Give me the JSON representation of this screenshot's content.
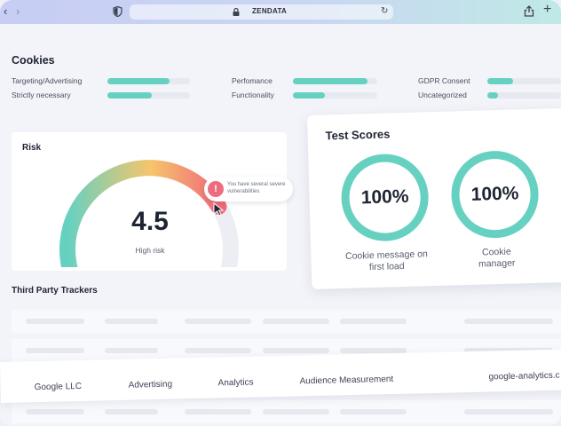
{
  "browser": {
    "url": "ZENDATA",
    "back_icon": "chevron-left-icon",
    "forward_icon": "chevron-right-icon"
  },
  "cookies": {
    "title": "Cookies",
    "categories": [
      {
        "label": "Targeting/Advertising",
        "fill": 0.75
      },
      {
        "label": "Strictly necessary",
        "fill": 0.54
      },
      {
        "label": "Perfomance",
        "fill": 0.88
      },
      {
        "label": "Functionality",
        "fill": 0.38
      },
      {
        "label": "GDPR Consent",
        "fill": 0.35
      },
      {
        "label": "Uncategorized",
        "fill": 0.15
      }
    ]
  },
  "risk": {
    "title": "Risk",
    "score": "4.5",
    "level": "High risk",
    "gauge_fraction": 0.78,
    "alert": "You have several severe vulnerabilities"
  },
  "test_scores": {
    "title": "Test Scores",
    "items": [
      {
        "value": "100%",
        "label": "Cookie message on first load"
      },
      {
        "value": "100%",
        "label": "Cookie manager"
      }
    ]
  },
  "trackers": {
    "title": "Third Party Trackers",
    "highlighted_row": {
      "company": "Google LLC",
      "category": "Advertising",
      "type": "Analytics",
      "purpose": "Audience Measurement",
      "domain": "google-analytics.c"
    }
  },
  "colors": {
    "accent": "#66d1c1",
    "alert": "#ee6c7f",
    "gauge_start": "#66d1c1",
    "gauge_mid": "#f6c56b",
    "gauge_end": "#f06a7a"
  }
}
